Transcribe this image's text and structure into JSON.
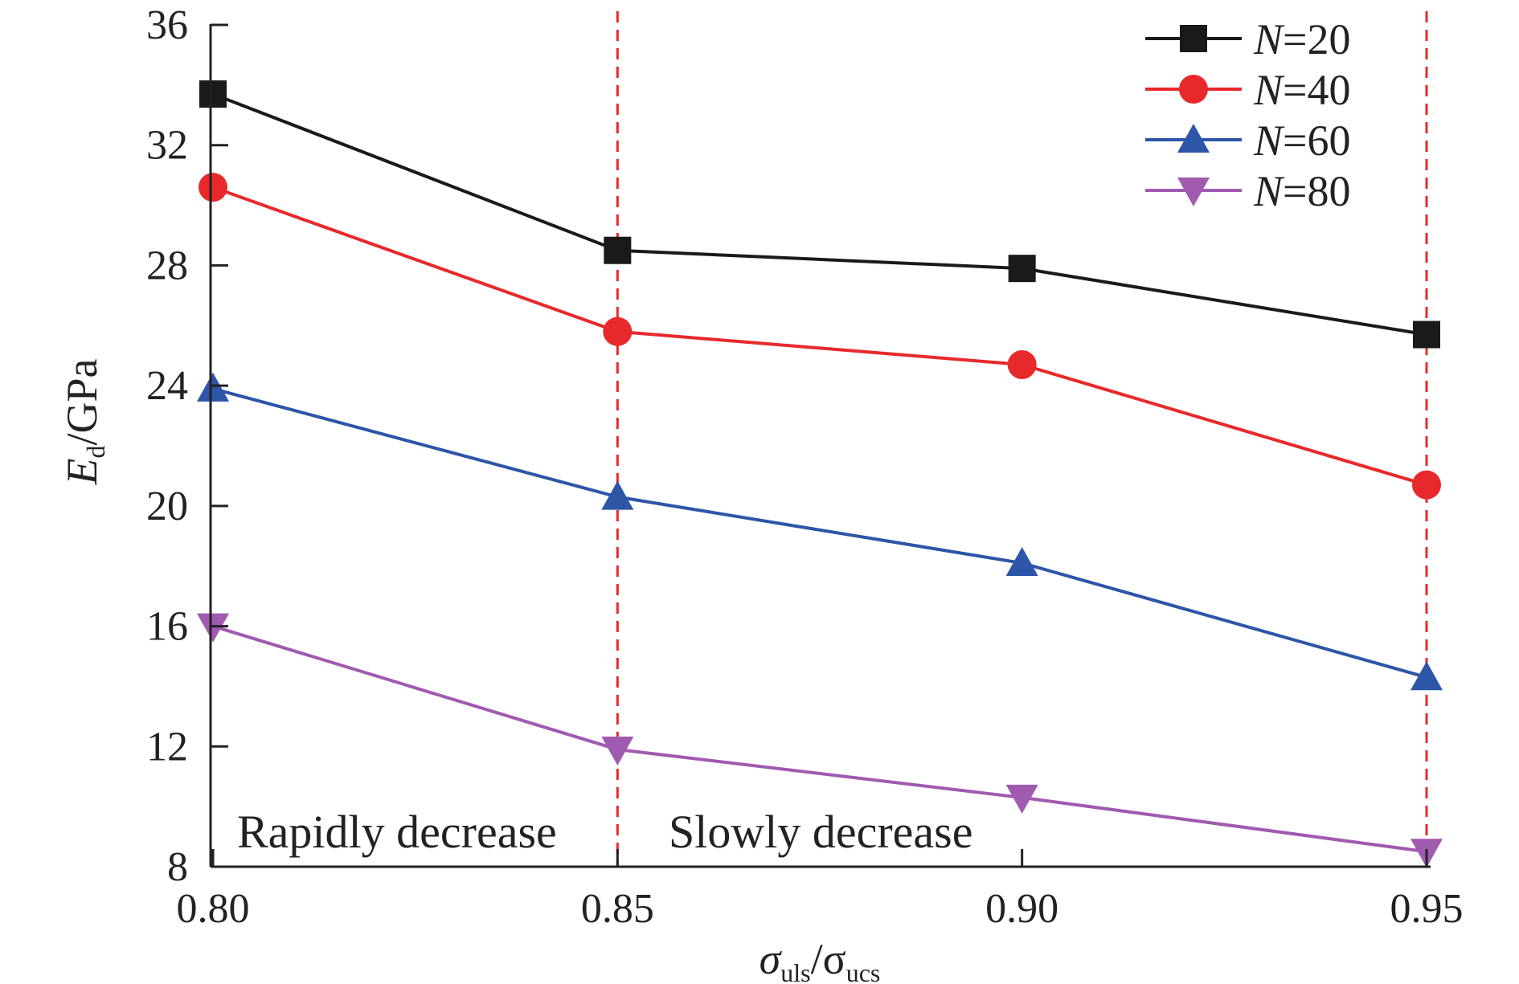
{
  "chart_data": {
    "type": "line",
    "x": [
      0.8,
      0.85,
      0.9,
      0.95
    ],
    "x_tick_labels": [
      "0.80",
      "0.85",
      "0.90",
      "0.95"
    ],
    "xlim": [
      0.8,
      0.95
    ],
    "y_ticks": [
      8,
      12,
      16,
      20,
      24,
      28,
      32,
      36
    ],
    "ylim": [
      8,
      36
    ],
    "xlabel": {
      "main": "σ",
      "sub1": "uls",
      "slash": "/σ",
      "sub2": "ucs"
    },
    "ylabel": {
      "main": "E",
      "sub": "d",
      "rest": "/GPa"
    },
    "series": [
      {
        "name": "N=20",
        "name_italic": "N",
        "name_rest": "=20",
        "color": "#1a1a1a",
        "marker": "square",
        "values": [
          33.7,
          28.5,
          27.9,
          25.7
        ]
      },
      {
        "name": "N=40",
        "name_italic": "N",
        "name_rest": "=40",
        "color": "#e8292b",
        "marker": "circle",
        "values": [
          30.6,
          25.8,
          24.7,
          20.7
        ]
      },
      {
        "name": "N=60",
        "name_italic": "N",
        "name_rest": "=60",
        "color": "#2d55a8",
        "marker": "triangle-up",
        "values": [
          23.9,
          20.3,
          18.1,
          14.3
        ]
      },
      {
        "name": "N=80",
        "name_italic": "N",
        "name_rest": "=80",
        "color": "#a05ab0",
        "marker": "triangle-down",
        "values": [
          16.0,
          11.9,
          10.3,
          8.5
        ]
      }
    ],
    "vlines": {
      "x": [
        0.85,
        0.95
      ],
      "color": "#e8292b",
      "style": "dashed"
    },
    "annotations": [
      {
        "text": "Rapidly decrease",
        "x": 0.825,
        "y": 9.2
      },
      {
        "text": "Slowly decrease",
        "x": 0.875,
        "y": 9.2
      }
    ],
    "legend": "top-right",
    "grid": false
  }
}
